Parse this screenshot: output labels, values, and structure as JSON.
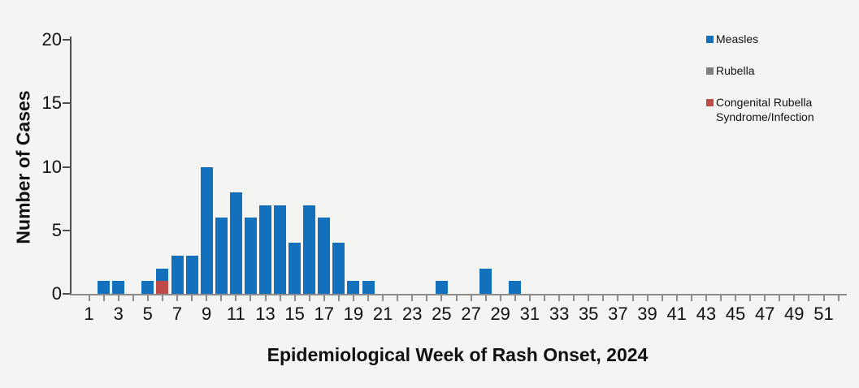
{
  "chart_data": {
    "type": "bar",
    "stacked": true,
    "title": "",
    "xlabel": "Epidemiological Week of Rash Onset, 2024",
    "ylabel": "Number of Cases",
    "x": [
      1,
      2,
      3,
      4,
      5,
      6,
      7,
      8,
      9,
      10,
      11,
      12,
      13,
      14,
      15,
      16,
      17,
      18,
      19,
      20,
      21,
      22,
      23,
      24,
      25,
      26,
      27,
      28,
      29,
      30,
      31,
      32,
      33,
      34,
      35,
      36,
      37,
      38,
      39,
      40,
      41,
      42,
      43,
      44,
      45,
      46,
      47,
      48,
      49,
      50,
      51,
      52
    ],
    "x_tick_labels": [
      "1",
      "3",
      "5",
      "7",
      "9",
      "11",
      "13",
      "15",
      "17",
      "19",
      "21",
      "23",
      "25",
      "27",
      "29",
      "31",
      "33",
      "35",
      "37",
      "39",
      "41",
      "43",
      "45",
      "47",
      "49",
      "51"
    ],
    "y_ticks": [
      0,
      5,
      10,
      15,
      20
    ],
    "ylim": [
      0,
      20
    ],
    "grid": false,
    "legend_position": "top-right",
    "stack_order_bottom_to_top": [
      "crs",
      "rubella",
      "measles"
    ],
    "series": [
      {
        "id": "measles",
        "name": "Measles",
        "color": "#1270BC",
        "values": [
          0,
          1,
          1,
          0,
          1,
          1,
          3,
          3,
          10,
          6,
          8,
          6,
          7,
          7,
          4,
          7,
          6,
          4,
          1,
          1,
          0,
          0,
          0,
          0,
          1,
          0,
          0,
          2,
          0,
          1,
          0,
          0,
          0,
          0,
          0,
          0,
          0,
          0,
          0,
          0,
          0,
          0,
          0,
          0,
          0,
          0,
          0,
          0,
          0,
          0,
          0,
          0
        ]
      },
      {
        "id": "rubella",
        "name": "Rubella",
        "color": "#7F7F7F",
        "values": [
          0,
          0,
          0,
          0,
          0,
          0,
          0,
          0,
          0,
          0,
          0,
          0,
          0,
          0,
          0,
          0,
          0,
          0,
          0,
          0,
          0,
          0,
          0,
          0,
          0,
          0,
          0,
          0,
          0,
          0,
          0,
          0,
          0,
          0,
          0,
          0,
          0,
          0,
          0,
          0,
          0,
          0,
          0,
          0,
          0,
          0,
          0,
          0,
          0,
          0,
          0,
          0
        ]
      },
      {
        "id": "crs",
        "name": "Congenital Rubella Syndrome/Infection",
        "color": "#BE4B48",
        "values": [
          0,
          0,
          0,
          0,
          0,
          1,
          0,
          0,
          0,
          0,
          0,
          0,
          0,
          0,
          0,
          0,
          0,
          0,
          0,
          0,
          0,
          0,
          0,
          0,
          0,
          0,
          0,
          0,
          0,
          0,
          0,
          0,
          0,
          0,
          0,
          0,
          0,
          0,
          0,
          0,
          0,
          0,
          0,
          0,
          0,
          0,
          0,
          0,
          0,
          0,
          0,
          0
        ]
      }
    ]
  },
  "legend": {
    "items": [
      {
        "id": "measles",
        "label": "Measles",
        "color": "#1270BC"
      },
      {
        "id": "rubella",
        "label": "Rubella",
        "color": "#7F7F7F"
      },
      {
        "id": "crs",
        "label": "Congenital Rubella Syndrome/Infection",
        "color": "#BE4B48"
      }
    ]
  },
  "colors": {
    "background": "#F4F4F3",
    "y_axis_line": "#4F4F4F",
    "x_axis_line": "#8C8C8C",
    "text": "#111111"
  }
}
